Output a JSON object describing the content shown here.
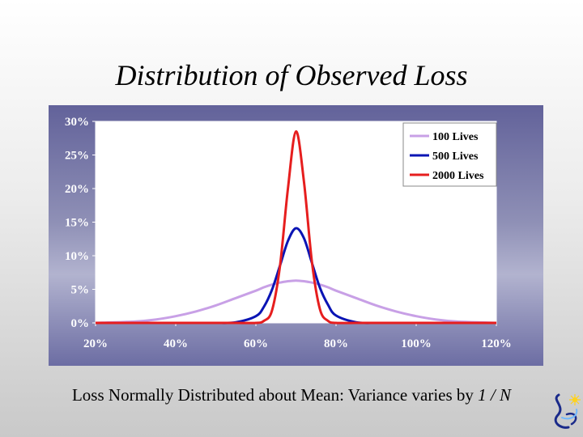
{
  "slide": {
    "title": "Distribution of Observed Loss",
    "caption_main": "Loss Normally Distributed about Mean:  Variance varies by ",
    "caption_italic": "1 / N"
  },
  "chart_data": {
    "type": "line",
    "title": "",
    "xlabel": "",
    "ylabel": "",
    "xlim": [
      0.2,
      1.2
    ],
    "ylim": [
      0,
      0.3
    ],
    "x_ticks": [
      "20%",
      "40%",
      "60%",
      "80%",
      "100%",
      "120%"
    ],
    "y_ticks": [
      "0%",
      "5%",
      "10%",
      "15%",
      "20%",
      "25%",
      "30%"
    ],
    "legend_position": "top-right",
    "grid": false,
    "x": [
      0.2,
      0.25,
      0.3,
      0.35,
      0.4,
      0.45,
      0.5,
      0.55,
      0.6,
      0.62,
      0.64,
      0.66,
      0.68,
      0.7,
      0.72,
      0.74,
      0.76,
      0.78,
      0.8,
      0.85,
      0.9,
      0.95,
      1.0,
      1.05,
      1.1,
      1.15,
      1.2
    ],
    "series": [
      {
        "name": "100 Lives",
        "color": "#c8a0e6",
        "values": [
          0.0,
          0.001,
          0.002,
          0.005,
          0.01,
          0.017,
          0.026,
          0.037,
          0.048,
          0.053,
          0.057,
          0.06,
          0.062,
          0.063,
          0.062,
          0.06,
          0.057,
          0.053,
          0.048,
          0.037,
          0.026,
          0.017,
          0.01,
          0.005,
          0.002,
          0.001,
          0.0
        ]
      },
      {
        "name": "500 Lives",
        "color": "#0a14b4",
        "values": [
          0.0,
          0.0,
          0.0,
          0.0,
          0.0,
          0.0,
          0.0,
          0.001,
          0.01,
          0.024,
          0.049,
          0.085,
          0.122,
          0.141,
          0.126,
          0.089,
          0.052,
          0.027,
          0.011,
          0.001,
          0.0,
          0.0,
          0.0,
          0.0,
          0.0,
          0.0,
          0.0
        ]
      },
      {
        "name": "2000 Lives",
        "color": "#e61e1e",
        "values": [
          0.0,
          0.0,
          0.0,
          0.0,
          0.0,
          0.0,
          0.0,
          0.0,
          0.0,
          0.003,
          0.018,
          0.084,
          0.2,
          0.285,
          0.21,
          0.09,
          0.02,
          0.003,
          0.0,
          0.0,
          0.0,
          0.0,
          0.0,
          0.0,
          0.0,
          0.0,
          0.0
        ]
      }
    ]
  }
}
